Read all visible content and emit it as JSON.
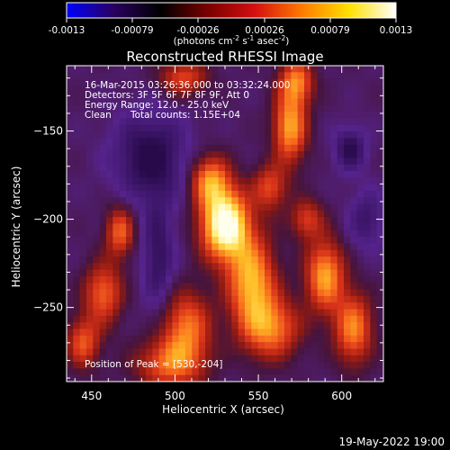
{
  "colorbar": {
    "ticks": [
      "-0.0013",
      "-0.00079",
      "-0.00026",
      "0.00026",
      "0.00079",
      "0.0013"
    ],
    "unit_label": "(photons cm",
    "unit_sup1": "-2",
    "unit_mid": " s",
    "unit_sup2": "-1",
    "unit_end": " asec",
    "unit_sup3": "-2",
    "unit_close": ")",
    "stops": [
      "#0000ff",
      "#2a0060",
      "#000000",
      "#7a0000",
      "#d41010",
      "#ff7a00",
      "#ffe000",
      "#ffffff"
    ]
  },
  "chart_data": {
    "type": "heatmap",
    "title": "Reconstructed RHESSI Image",
    "xlabel": "Heliocentric X (arcsec)",
    "ylabel": "Heliocentric Y (arcsec)",
    "xlim": [
      435,
      625
    ],
    "ylim": [
      -292,
      -113
    ],
    "xticks": [
      450,
      500,
      550,
      600
    ],
    "yticks": [
      -150,
      -200,
      -250
    ],
    "colorscale_range": [
      -0.0013,
      0.0013
    ],
    "peak": {
      "x": 530,
      "y": -204
    },
    "sources": [
      {
        "x": 530,
        "y": -203,
        "sx": 10,
        "sy": 14,
        "amp": 1.35
      },
      {
        "x": 521,
        "y": -178,
        "sx": 8,
        "sy": 10,
        "amp": 0.75
      },
      {
        "x": 546,
        "y": -236,
        "sx": 10,
        "sy": 18,
        "amp": 0.9
      },
      {
        "x": 558,
        "y": -262,
        "sx": 12,
        "sy": 12,
        "amp": 0.7
      },
      {
        "x": 507,
        "y": -261,
        "sx": 10,
        "sy": 14,
        "amp": 0.7
      },
      {
        "x": 497,
        "y": -282,
        "sx": 14,
        "sy": 10,
        "amp": 0.65
      },
      {
        "x": 569,
        "y": -148,
        "sx": 7,
        "sy": 14,
        "amp": 0.85
      },
      {
        "x": 573,
        "y": -122,
        "sx": 7,
        "sy": 9,
        "amp": 0.7
      },
      {
        "x": 557,
        "y": -182,
        "sx": 7,
        "sy": 9,
        "amp": 0.55
      },
      {
        "x": 590,
        "y": -232,
        "sx": 8,
        "sy": 14,
        "amp": 0.85
      },
      {
        "x": 607,
        "y": -262,
        "sx": 8,
        "sy": 14,
        "amp": 0.75
      },
      {
        "x": 579,
        "y": -200,
        "sx": 7,
        "sy": 8,
        "amp": 0.5
      },
      {
        "x": 467,
        "y": -207,
        "sx": 6,
        "sy": 10,
        "amp": 0.65
      },
      {
        "x": 457,
        "y": -242,
        "sx": 8,
        "sy": 12,
        "amp": 0.65
      },
      {
        "x": 445,
        "y": -270,
        "sx": 7,
        "sy": 10,
        "amp": 0.6
      },
      {
        "x": 505,
        "y": -120,
        "sx": 10,
        "sy": 7,
        "amp": 0.55
      },
      {
        "x": 605,
        "y": -160,
        "sx": 7,
        "sy": 9,
        "amp": -0.4
      },
      {
        "x": 485,
        "y": -165,
        "sx": 16,
        "sy": 18,
        "amp": -0.45
      },
      {
        "x": 490,
        "y": -222,
        "sx": 7,
        "sy": 22,
        "amp": -0.35
      },
      {
        "x": 615,
        "y": -200,
        "sx": 8,
        "sy": 12,
        "amp": -0.3
      }
    ]
  },
  "annotations": {
    "line1": "16-Mar-2015 03:26:36.000 to 03:32:24.000",
    "line2": "Detectors: 3F 5F 6F 7F 8F 9F, Att 0",
    "line3": "Energy Range: 12.0 - 25.0 keV",
    "line4_a": "Clean",
    "line4_b": "Total counts: 1.15E+04",
    "peak_text": "Position of Peak = [530,-204]"
  },
  "footer": {
    "timestamp": "19-May-2022 19:00"
  }
}
